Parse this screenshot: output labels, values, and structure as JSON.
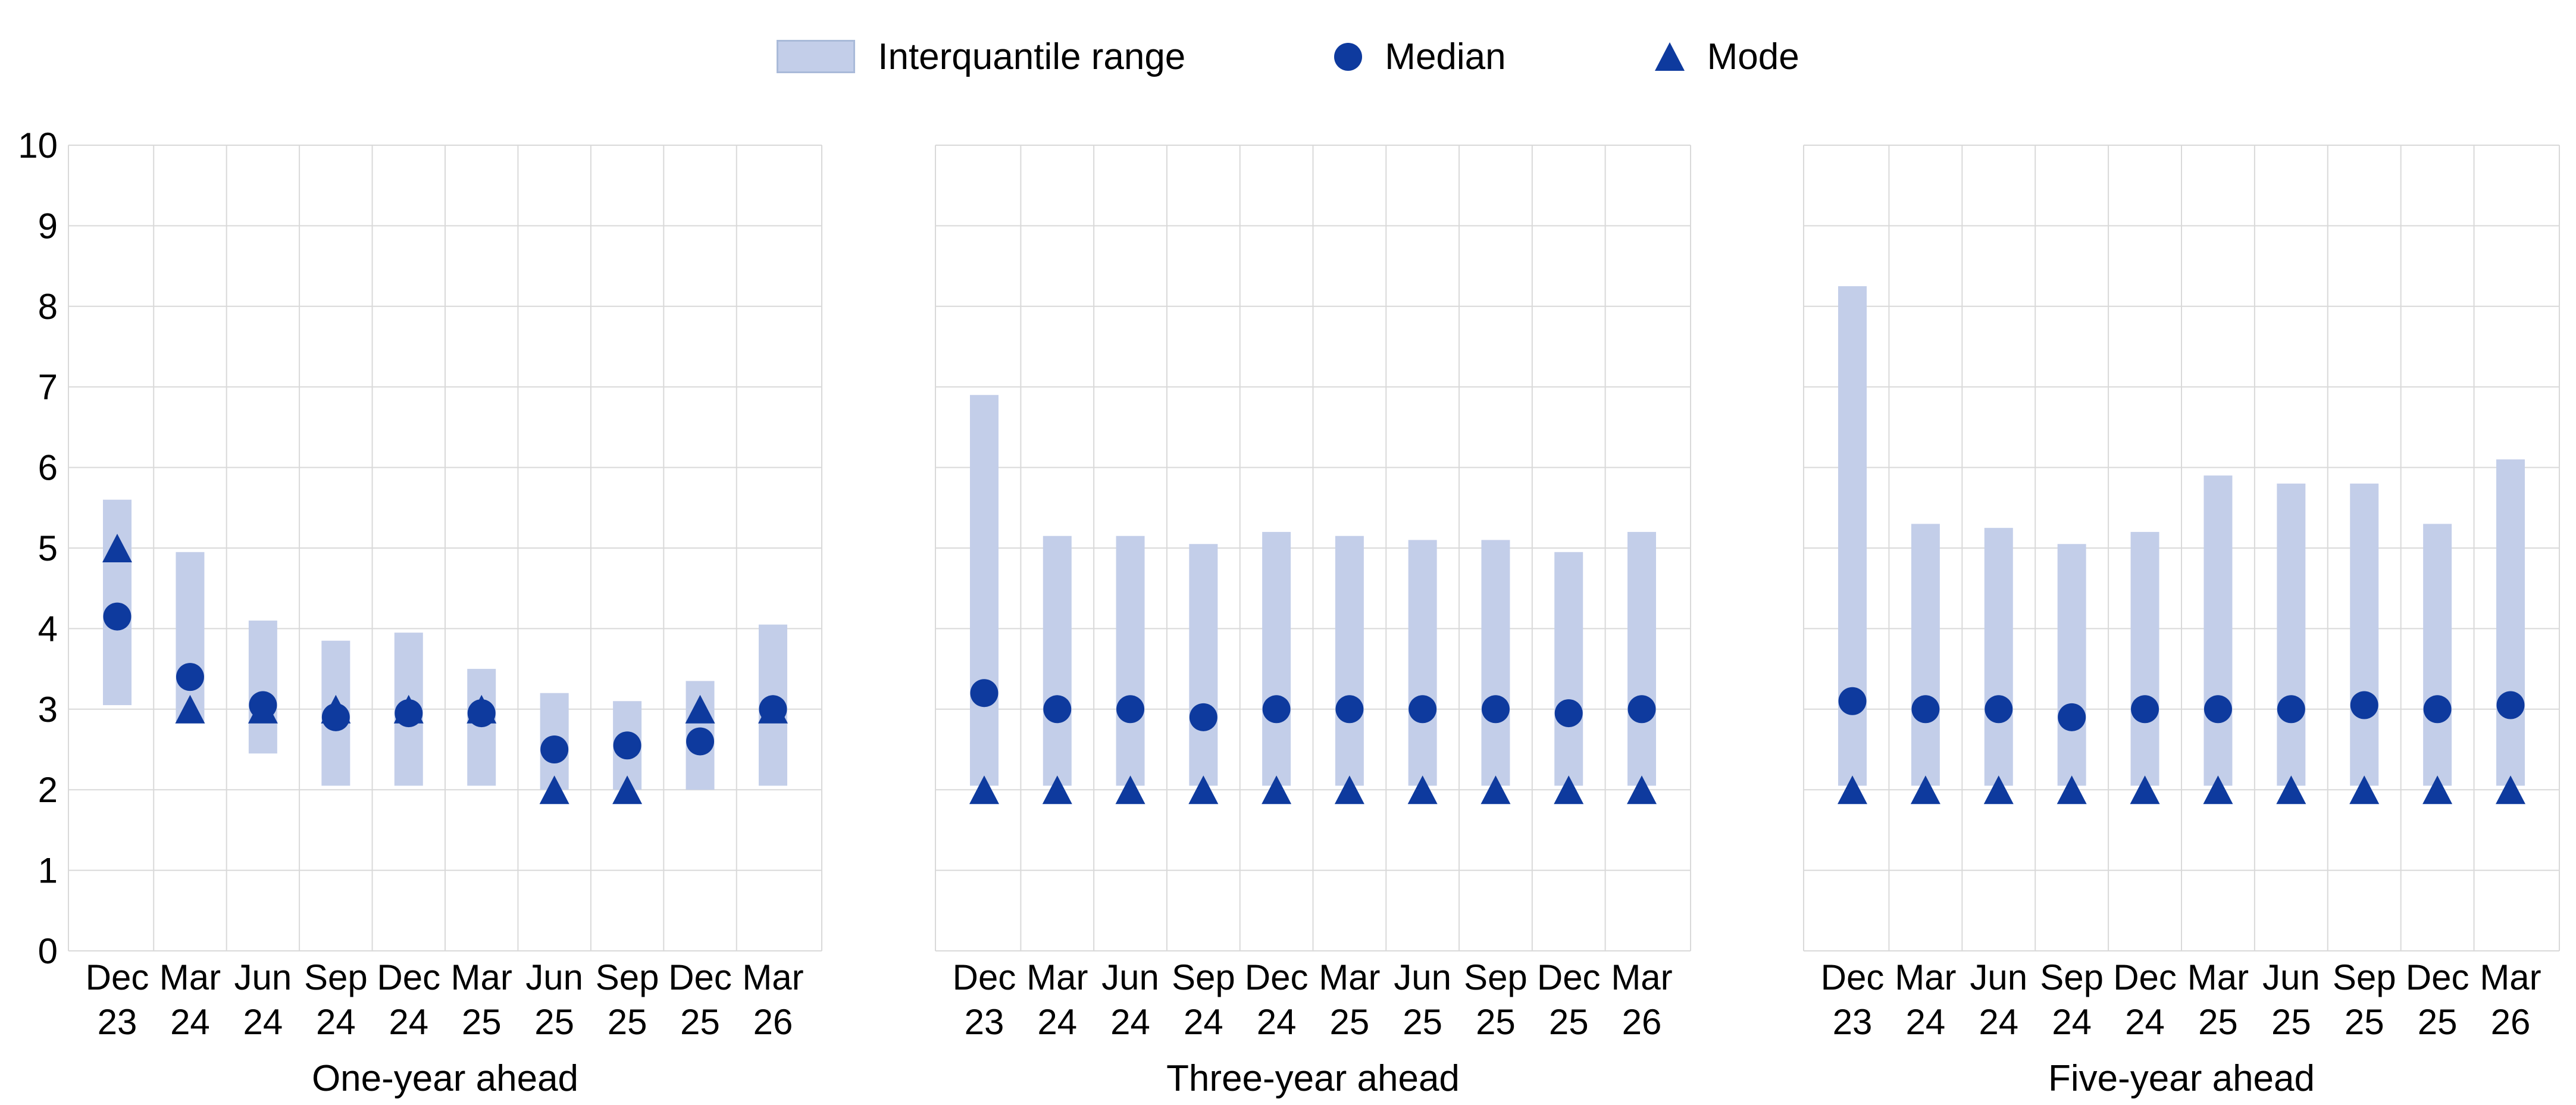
{
  "colors": {
    "iqr_bar": "#c3cee9",
    "marker": "#0e3a9e",
    "grid": "#d9d9d9",
    "swatch_border": "#a9bad9",
    "text": "#000000",
    "background": "#ffffff"
  },
  "legend": {
    "items": [
      {
        "marker": "iqr-swatch",
        "label": "Interquantile range"
      },
      {
        "marker": "median-circle",
        "label": "Median"
      },
      {
        "marker": "mode-triangle",
        "label": "Mode"
      }
    ]
  },
  "y_axis": {
    "min": 0,
    "max": 10,
    "step": 1,
    "tick_labels": [
      "0",
      "1",
      "2",
      "3",
      "4",
      "5",
      "6",
      "7",
      "8",
      "9",
      "10"
    ]
  },
  "chart_data": [
    {
      "type": "bar",
      "subtype": "range-bar-with-median-and-mode-markers",
      "xlabel": "One-year ahead",
      "ylim": [
        0,
        10
      ],
      "grid": true,
      "legend_position": "top-center",
      "categories": [
        [
          "Dec",
          "23"
        ],
        [
          "Mar",
          "24"
        ],
        [
          "Jun",
          "24"
        ],
        [
          "Sep",
          "24"
        ],
        [
          "Dec",
          "24"
        ],
        [
          "Mar",
          "25"
        ],
        [
          "Jun",
          "25"
        ],
        [
          "Sep",
          "25"
        ],
        [
          "Dec",
          "25"
        ],
        [
          "Mar",
          "26"
        ]
      ],
      "series": [
        {
          "name": "Interquantile range",
          "values": [
            [
              3.05,
              5.6
            ],
            [
              2.85,
              4.95
            ],
            [
              2.45,
              4.1
            ],
            [
              2.05,
              3.85
            ],
            [
              2.05,
              3.95
            ],
            [
              2.05,
              3.5
            ],
            [
              2.0,
              3.2
            ],
            [
              2.0,
              3.1
            ],
            [
              2.0,
              3.35
            ],
            [
              2.05,
              4.05
            ]
          ]
        },
        {
          "name": "Median",
          "values": [
            4.15,
            3.4,
            3.05,
            2.9,
            2.95,
            2.95,
            2.5,
            2.55,
            2.6,
            3.0
          ]
        },
        {
          "name": "Mode",
          "values": [
            5.0,
            3.0,
            3.0,
            3.0,
            3.0,
            3.0,
            2.0,
            2.0,
            3.0,
            3.0
          ]
        }
      ]
    },
    {
      "type": "bar",
      "subtype": "range-bar-with-median-and-mode-markers",
      "xlabel": "Three-year ahead",
      "ylim": [
        0,
        10
      ],
      "grid": true,
      "legend_position": "top-center",
      "categories": [
        [
          "Dec",
          "23"
        ],
        [
          "Mar",
          "24"
        ],
        [
          "Jun",
          "24"
        ],
        [
          "Sep",
          "24"
        ],
        [
          "Dec",
          "24"
        ],
        [
          "Mar",
          "25"
        ],
        [
          "Jun",
          "25"
        ],
        [
          "Sep",
          "25"
        ],
        [
          "Dec",
          "25"
        ],
        [
          "Mar",
          "26"
        ]
      ],
      "series": [
        {
          "name": "Interquantile range",
          "values": [
            [
              2.05,
              6.9
            ],
            [
              2.05,
              5.15
            ],
            [
              2.05,
              5.15
            ],
            [
              2.05,
              5.05
            ],
            [
              2.05,
              5.2
            ],
            [
              2.05,
              5.15
            ],
            [
              2.05,
              5.1
            ],
            [
              2.05,
              5.1
            ],
            [
              2.05,
              4.95
            ],
            [
              2.05,
              5.2
            ]
          ]
        },
        {
          "name": "Median",
          "values": [
            3.2,
            3.0,
            3.0,
            2.9,
            3.0,
            3.0,
            3.0,
            3.0,
            2.95,
            3.0
          ]
        },
        {
          "name": "Mode",
          "values": [
            2.0,
            2.0,
            2.0,
            2.0,
            2.0,
            2.0,
            2.0,
            2.0,
            2.0,
            2.0
          ]
        }
      ]
    },
    {
      "type": "bar",
      "subtype": "range-bar-with-median-and-mode-markers",
      "xlabel": "Five-year ahead",
      "ylim": [
        0,
        10
      ],
      "grid": true,
      "legend_position": "top-center",
      "categories": [
        [
          "Dec",
          "23"
        ],
        [
          "Mar",
          "24"
        ],
        [
          "Jun",
          "24"
        ],
        [
          "Sep",
          "24"
        ],
        [
          "Dec",
          "24"
        ],
        [
          "Mar",
          "25"
        ],
        [
          "Jun",
          "25"
        ],
        [
          "Sep",
          "25"
        ],
        [
          "Dec",
          "25"
        ],
        [
          "Mar",
          "26"
        ]
      ],
      "series": [
        {
          "name": "Interquantile range",
          "values": [
            [
              2.05,
              8.25
            ],
            [
              2.05,
              5.3
            ],
            [
              2.05,
              5.25
            ],
            [
              2.05,
              5.05
            ],
            [
              2.05,
              5.2
            ],
            [
              2.05,
              5.9
            ],
            [
              2.05,
              5.8
            ],
            [
              2.05,
              5.8
            ],
            [
              2.05,
              5.3
            ],
            [
              2.05,
              6.1
            ]
          ]
        },
        {
          "name": "Median",
          "values": [
            3.1,
            3.0,
            3.0,
            2.9,
            3.0,
            3.0,
            3.0,
            3.05,
            3.0,
            3.05
          ]
        },
        {
          "name": "Mode",
          "values": [
            2.0,
            2.0,
            2.0,
            2.0,
            2.0,
            2.0,
            2.0,
            2.0,
            2.0,
            2.0
          ]
        }
      ]
    }
  ]
}
